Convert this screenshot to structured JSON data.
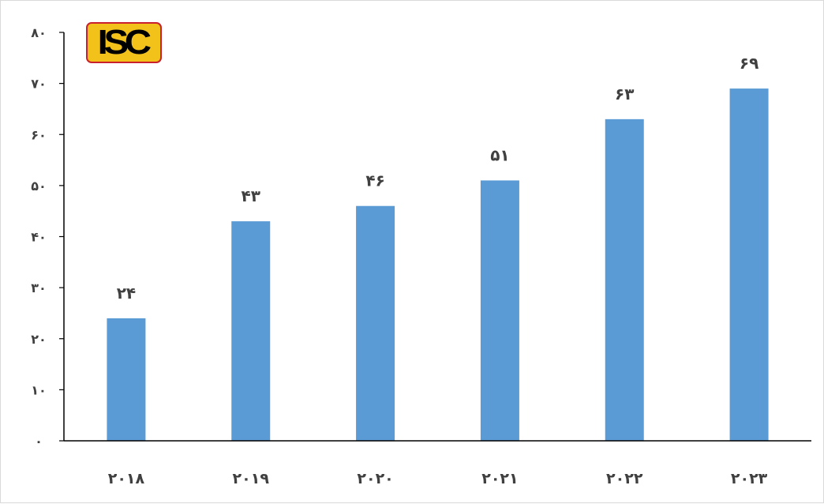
{
  "logo": {
    "text": "ISC",
    "bg_color": "#f2c21b",
    "border_color": "#c8202c"
  },
  "colors": {
    "bar": "#5b9bd5",
    "axis": "#000000",
    "text": "#404040"
  },
  "chart_data": {
    "type": "bar",
    "categories": [
      "۲۰۱۸",
      "۲۰۱۹",
      "۲۰۲۰",
      "۲۰۲۱",
      "۲۰۲۲",
      "۲۰۲۳"
    ],
    "values": [
      24,
      43,
      46,
      51,
      63,
      69
    ],
    "data_labels": [
      "۲۴",
      "۴۳",
      "۴۶",
      "۵۱",
      "۶۳",
      "۶۹"
    ],
    "y_ticks": [
      0,
      10,
      20,
      30,
      40,
      50,
      60,
      70,
      80
    ],
    "y_tick_labels": [
      "۰",
      "۱۰",
      "۲۰",
      "۳۰",
      "۴۰",
      "۵۰",
      "۶۰",
      "۷۰",
      "۸۰"
    ],
    "ylim": [
      0,
      80
    ],
    "title": "",
    "xlabel": "",
    "ylabel": "",
    "grid": false,
    "legend": "none"
  }
}
